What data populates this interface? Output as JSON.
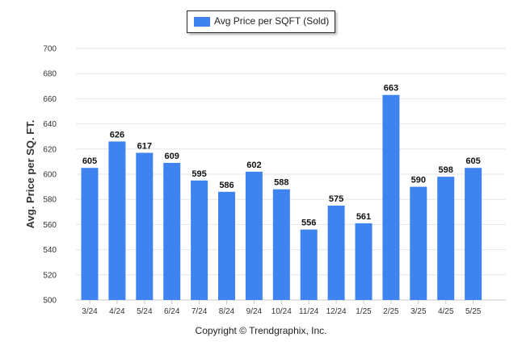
{
  "chart_data": {
    "type": "bar",
    "ylabel": "Avg. Price per SQ. FT.",
    "xlabel": "",
    "ylim": [
      500,
      700
    ],
    "yticks": [
      500,
      520,
      540,
      560,
      580,
      600,
      620,
      640,
      660,
      680,
      700
    ],
    "grid": true,
    "legend_placement": "top-center",
    "categories": [
      "3/24",
      "4/24",
      "5/24",
      "6/24",
      "7/24",
      "8/24",
      "9/24",
      "10/24",
      "11/24",
      "12/24",
      "1/25",
      "2/25",
      "3/25",
      "4/25",
      "5/25"
    ],
    "series": [
      {
        "name": "Avg Price per SQFT (Sold)",
        "color": "#3f83f0",
        "values": [
          605,
          626,
          617,
          609,
          595,
          586,
          602,
          588,
          556,
          575,
          561,
          663,
          590,
          598,
          605
        ]
      }
    ]
  },
  "footer": {
    "copyright": "Copyright © Trendgraphix, Inc."
  }
}
